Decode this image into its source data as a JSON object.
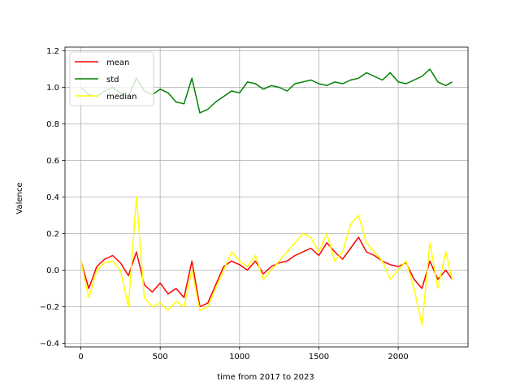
{
  "chart_data": {
    "type": "line",
    "title": "",
    "xlabel": "time from 2017 to 2023",
    "ylabel": "Valence",
    "xlim": [
      -100,
      2440
    ],
    "ylim": [
      -0.42,
      1.22
    ],
    "xticks": [
      0,
      500,
      1000,
      1500,
      2000
    ],
    "yticks": [
      -0.4,
      -0.2,
      0.0,
      0.2,
      0.4,
      0.6,
      0.8,
      1.0,
      1.2
    ],
    "xtick_labels": [
      "0",
      "500",
      "1000",
      "1500",
      "2000"
    ],
    "ytick_labels": [
      "−0.4",
      "−0.2",
      "0.0",
      "0.2",
      "0.4",
      "0.6",
      "0.8",
      "1.0",
      "1.2"
    ],
    "grid": true,
    "legend_position": "top-left",
    "series": [
      {
        "name": "mean",
        "color": "#ff0000",
        "x": [
          0,
          50,
          100,
          150,
          200,
          250,
          300,
          350,
          400,
          450,
          500,
          550,
          600,
          650,
          700,
          750,
          800,
          850,
          900,
          950,
          1000,
          1050,
          1100,
          1150,
          1200,
          1250,
          1300,
          1350,
          1400,
          1450,
          1500,
          1550,
          1600,
          1650,
          1700,
          1750,
          1800,
          1850,
          1900,
          1950,
          2000,
          2050,
          2100,
          2150,
          2200,
          2250,
          2300,
          2340
        ],
        "values": [
          0.05,
          -0.1,
          0.02,
          0.06,
          0.08,
          0.04,
          -0.03,
          0.1,
          -0.08,
          -0.12,
          -0.07,
          -0.13,
          -0.1,
          -0.15,
          0.05,
          -0.2,
          -0.18,
          -0.08,
          0.02,
          0.05,
          0.03,
          0.0,
          0.05,
          -0.02,
          0.02,
          0.04,
          0.05,
          0.08,
          0.1,
          0.12,
          0.08,
          0.15,
          0.1,
          0.06,
          0.12,
          0.18,
          0.1,
          0.08,
          0.05,
          0.03,
          0.02,
          0.04,
          -0.05,
          -0.1,
          0.05,
          -0.05,
          0.0,
          -0.05
        ]
      },
      {
        "name": "std",
        "color": "#008000",
        "x": [
          0,
          50,
          100,
          150,
          200,
          250,
          300,
          350,
          400,
          450,
          500,
          550,
          600,
          650,
          700,
          750,
          800,
          850,
          900,
          950,
          1000,
          1050,
          1100,
          1150,
          1200,
          1250,
          1300,
          1350,
          1400,
          1450,
          1500,
          1550,
          1600,
          1650,
          1700,
          1750,
          1800,
          1850,
          1900,
          1950,
          2000,
          2050,
          2100,
          2150,
          2200,
          2250,
          2300,
          2340
        ],
        "values": [
          1.0,
          0.96,
          0.95,
          0.98,
          1.0,
          0.97,
          0.95,
          1.05,
          0.98,
          0.96,
          0.99,
          0.97,
          0.92,
          0.91,
          1.05,
          0.86,
          0.88,
          0.92,
          0.95,
          0.98,
          0.97,
          1.03,
          1.02,
          0.99,
          1.01,
          1.0,
          0.98,
          1.02,
          1.03,
          1.04,
          1.02,
          1.01,
          1.03,
          1.02,
          1.04,
          1.05,
          1.08,
          1.06,
          1.04,
          1.08,
          1.03,
          1.02,
          1.04,
          1.06,
          1.1,
          1.03,
          1.01,
          1.03
        ]
      },
      {
        "name": "median",
        "color": "#ffff00",
        "x": [
          0,
          50,
          100,
          150,
          200,
          250,
          300,
          350,
          400,
          450,
          500,
          550,
          600,
          650,
          700,
          750,
          800,
          850,
          900,
          950,
          1000,
          1050,
          1100,
          1150,
          1200,
          1250,
          1300,
          1350,
          1400,
          1450,
          1500,
          1550,
          1600,
          1650,
          1700,
          1750,
          1800,
          1850,
          1900,
          1950,
          2000,
          2050,
          2100,
          2150,
          2200,
          2250,
          2300,
          2340
        ],
        "values": [
          0.05,
          -0.15,
          0.0,
          0.04,
          0.05,
          0.0,
          -0.2,
          0.4,
          -0.15,
          -0.2,
          -0.18,
          -0.22,
          -0.17,
          -0.2,
          0.0,
          -0.22,
          -0.2,
          -0.1,
          0.0,
          0.1,
          0.05,
          0.02,
          0.08,
          -0.05,
          0.0,
          0.05,
          0.1,
          0.15,
          0.2,
          0.18,
          0.1,
          0.2,
          0.05,
          0.1,
          0.25,
          0.3,
          0.15,
          0.1,
          0.05,
          -0.05,
          0.0,
          0.05,
          -0.1,
          -0.3,
          0.15,
          -0.1,
          0.1,
          -0.05
        ]
      }
    ]
  }
}
